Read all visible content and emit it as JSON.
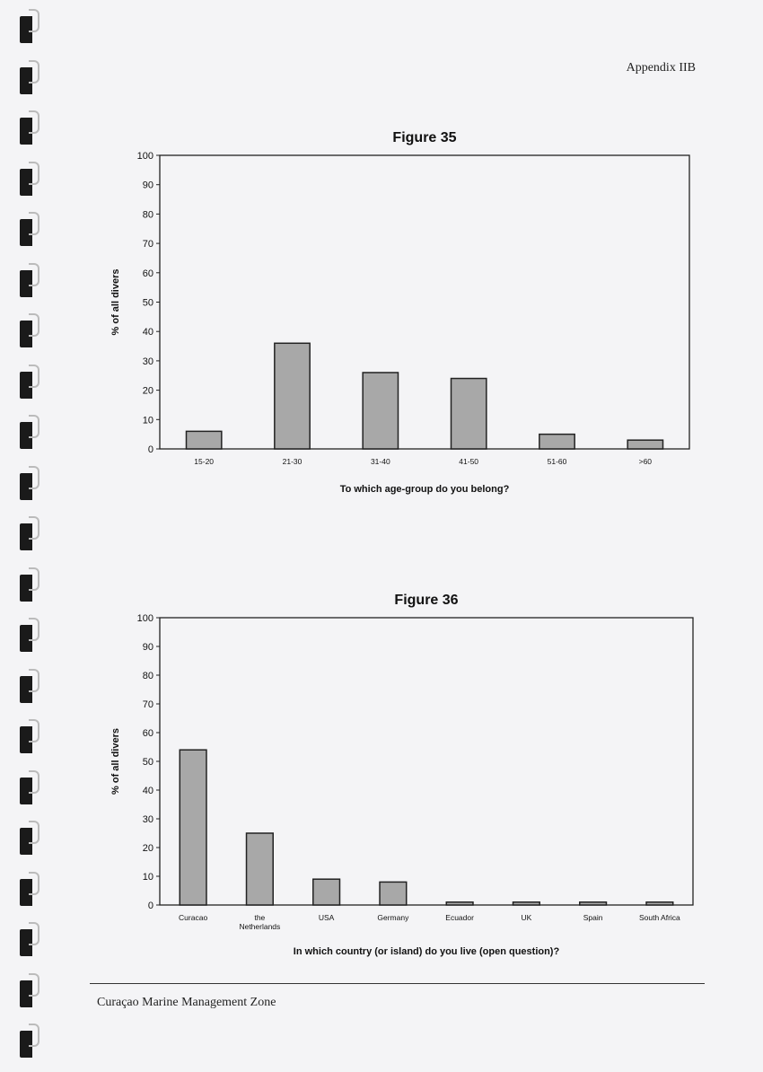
{
  "header": {
    "appendix": "Appendix IIB"
  },
  "footer": {
    "text": "Curaçao Marine Management Zone"
  },
  "colors": {
    "bar_fill": "#a8a8a8",
    "bar_stroke": "#222222",
    "page": "#f4f4f6"
  },
  "chart_data": [
    {
      "type": "bar",
      "title": "Figure 35",
      "xlabel": "To which age-group do you belong?",
      "ylabel": "% of all divers",
      "categories": [
        "15-20",
        "21-30",
        "31-40",
        "41-50",
        "51-60",
        ">60"
      ],
      "values": [
        6,
        36,
        26,
        24,
        5,
        3
      ],
      "ylim": [
        0,
        100
      ],
      "yticks": [
        0,
        10,
        20,
        30,
        40,
        50,
        60,
        70,
        80,
        90,
        100
      ],
      "grid": false
    },
    {
      "type": "bar",
      "title": "Figure 36",
      "xlabel": "In which country (or island) do you live (open question)?",
      "ylabel": "% of all divers",
      "categories": [
        "Curacao",
        "the Netherlands",
        "USA",
        "Germany",
        "Ecuador",
        "UK",
        "Spain",
        "South Africa"
      ],
      "values": [
        54,
        25,
        9,
        8,
        1,
        1,
        1,
        1
      ],
      "ylim": [
        0,
        100
      ],
      "yticks": [
        0,
        10,
        20,
        30,
        40,
        50,
        60,
        70,
        80,
        90,
        100
      ],
      "grid": false
    }
  ]
}
